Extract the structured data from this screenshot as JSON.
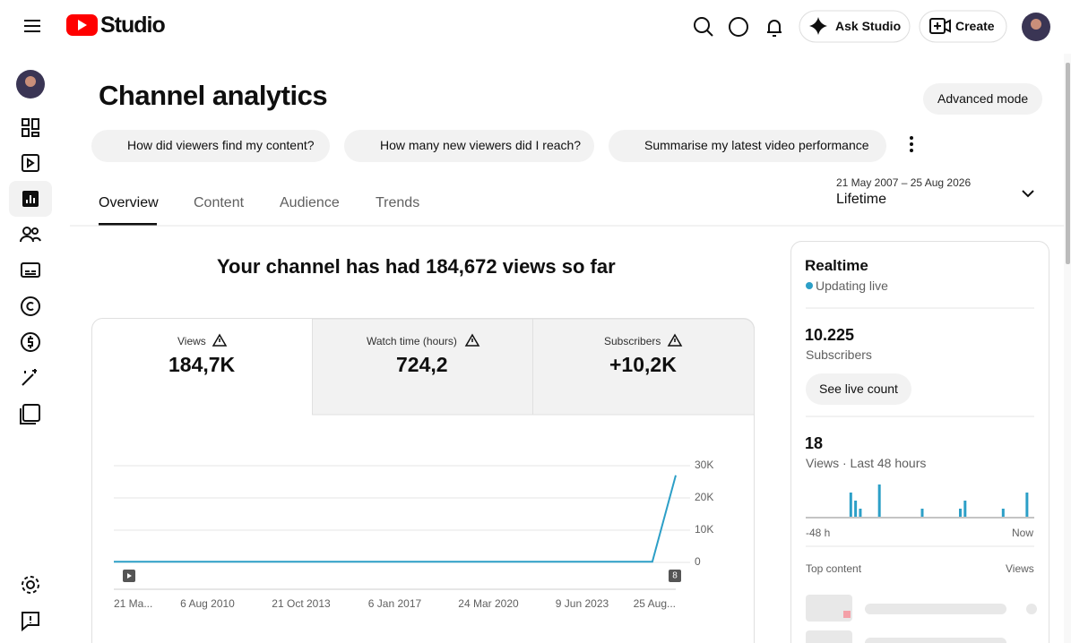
{
  "header": {
    "logo": "Studio",
    "ask": "Ask Studio",
    "create": "Create"
  },
  "page": {
    "title": "Channel analytics",
    "advanced": "Advanced mode",
    "prompts": [
      "How did viewers find my content?",
      "How many new viewers did I reach?",
      "Summarise my latest video performance"
    ],
    "tabs": [
      "Overview",
      "Content",
      "Audience",
      "Trends"
    ],
    "date_range": "21 May 2007 – 25 Aug 2026",
    "period": "Lifetime",
    "headline": "Your channel has had 184,672 views so far"
  },
  "metrics": [
    {
      "label": "Views",
      "value": "184,7K"
    },
    {
      "label": "Watch time (hours)",
      "value": "724,2"
    },
    {
      "label": "Subscribers",
      "value": "+10,2K"
    }
  ],
  "views_chart": {
    "type": "line",
    "color": "#2c9fc7",
    "categories": [
      "21 Ma...",
      null,
      null,
      null,
      "6 Aug 2010",
      null,
      null,
      null,
      "21 Oct 2013",
      null,
      null,
      null,
      "6 Jan 2017",
      null,
      null,
      null,
      "24 Mar 2020",
      null,
      null,
      null,
      "9 Jun 2023",
      null,
      null,
      null,
      "25 Aug..."
    ],
    "values": [
      200,
      200,
      200,
      200,
      200,
      200,
      200,
      200,
      200,
      200,
      200,
      200,
      200,
      200,
      200,
      200,
      200,
      200,
      200,
      200,
      200,
      200,
      200,
      200,
      27000
    ],
    "ylim": [
      0,
      30000
    ],
    "yticks": [
      {
        "value": 0,
        "label": "0"
      },
      {
        "value": 10000,
        "label": "10K"
      },
      {
        "value": 20000,
        "label": "20K"
      },
      {
        "value": 30000,
        "label": "30K"
      }
    ],
    "badge": "8",
    "grid": true
  },
  "realtime": {
    "title": "Realtime",
    "status": "Updating live",
    "subscribers": "10.225",
    "subscribers_label": "Subscribers",
    "button": "See live count",
    "views": "18",
    "views_label": "Views · Last 48 hours",
    "start": "-48 h",
    "end": "Now",
    "top_content": "Top content",
    "top_views": "Views",
    "chart": {
      "type": "bar",
      "color": "#2c9fc7",
      "values": [
        0,
        0,
        0,
        0,
        0,
        0,
        0,
        0,
        0,
        3,
        2,
        1,
        0,
        0,
        0,
        4,
        0,
        0,
        0,
        0,
        0,
        0,
        0,
        0,
        1,
        0,
        0,
        0,
        0,
        0,
        0,
        0,
        1,
        2,
        0,
        0,
        0,
        0,
        0,
        0,
        0,
        1,
        0,
        0,
        0,
        0,
        3,
        0
      ]
    }
  }
}
